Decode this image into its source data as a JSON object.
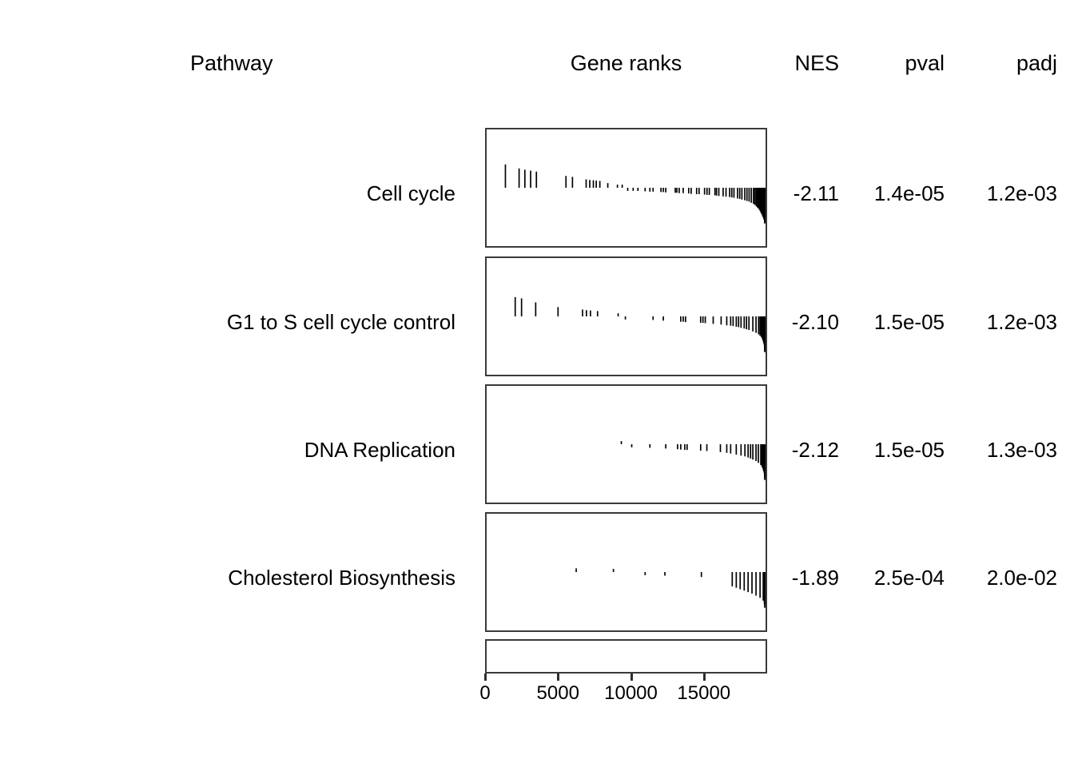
{
  "header": {
    "pathway": "Pathway",
    "gene_ranks": "Gene ranks",
    "nes": "NES",
    "pval": "pval",
    "padj": "padj"
  },
  "chart_data": {
    "type": "table",
    "title": "",
    "description": "GSEA results table: per-pathway gene rank tick plots with NES, pval and padj columns. Ticks hang from a central baseline; positive stat ticks point up, negative point down (negative enrichment, dense cluster at high ranks).",
    "columns": [
      "Pathway",
      "Gene ranks",
      "NES",
      "pval",
      "padj"
    ],
    "x_axis": {
      "label": "",
      "ticks": [
        0,
        5000,
        10000,
        15000
      ],
      "range": [
        0,
        19340
      ],
      "grid": false
    },
    "tick_color": "#000000",
    "pathways": [
      {
        "name": "Cell cycle",
        "nes": -2.11,
        "nes_label": "-2.11",
        "pval_label": "1.4e-05",
        "padj_label": "1.2e-03",
        "gene_rank_ticks": [
          [
            1300,
            0.75
          ],
          [
            2250,
            0.62
          ],
          [
            2650,
            0.58
          ],
          [
            3050,
            0.55
          ],
          [
            3450,
            0.52
          ],
          [
            5500,
            0.38
          ],
          [
            5950,
            0.35
          ],
          [
            6900,
            0.27
          ],
          [
            7150,
            0.25
          ],
          [
            7400,
            0.24
          ],
          [
            7600,
            0.23
          ],
          [
            7850,
            0.22
          ],
          [
            8400,
            0.15
          ],
          [
            9070,
            0.1
          ],
          [
            9400,
            0.08
          ],
          [
            9780,
            -0.07
          ],
          [
            10160,
            -0.08
          ],
          [
            10490,
            -0.09
          ],
          [
            10990,
            -0.1
          ],
          [
            11320,
            -0.11
          ],
          [
            11540,
            -0.11
          ],
          [
            12090,
            -0.12
          ],
          [
            12250,
            -0.12
          ],
          [
            12420,
            -0.13
          ],
          [
            13080,
            -0.14
          ],
          [
            13190,
            -0.14
          ],
          [
            13350,
            -0.15
          ],
          [
            13630,
            -0.15
          ],
          [
            14010,
            -0.16
          ],
          [
            14180,
            -0.17
          ],
          [
            14560,
            -0.18
          ],
          [
            14730,
            -0.18
          ],
          [
            15110,
            -0.19
          ],
          [
            15280,
            -0.2
          ],
          [
            15440,
            -0.2
          ],
          [
            15830,
            -0.21
          ],
          [
            15940,
            -0.22
          ],
          [
            16100,
            -0.23
          ],
          [
            16400,
            -0.24
          ],
          [
            16600,
            -0.25
          ],
          [
            16850,
            -0.26
          ],
          [
            17000,
            -0.27
          ],
          [
            17150,
            -0.28
          ],
          [
            17400,
            -0.3
          ],
          [
            17550,
            -0.31
          ],
          [
            17700,
            -0.33
          ],
          [
            17900,
            -0.35
          ],
          [
            18050,
            -0.37
          ],
          [
            18200,
            -0.39
          ],
          [
            18350,
            -0.42
          ],
          [
            18500,
            -0.45
          ],
          [
            18600,
            -0.48
          ],
          [
            18700,
            -0.52
          ],
          [
            18780,
            -0.55
          ],
          [
            18850,
            -0.58
          ],
          [
            18920,
            -0.62
          ],
          [
            18980,
            -0.66
          ],
          [
            19030,
            -0.7
          ],
          [
            19080,
            -0.74
          ],
          [
            19130,
            -0.78
          ],
          [
            19170,
            -0.82
          ],
          [
            19210,
            -0.86
          ],
          [
            19240,
            -0.89
          ],
          [
            19270,
            -0.92
          ],
          [
            19290,
            -0.94
          ],
          [
            19310,
            -0.96
          ],
          [
            19325,
            -0.98
          ],
          [
            19340,
            -1.0
          ]
        ]
      },
      {
        "name": "G1 to S cell cycle control",
        "nes": -2.1,
        "nes_label": "-2.10",
        "pval_label": "1.5e-05",
        "padj_label": "1.2e-03",
        "gene_rank_ticks": [
          [
            1980,
            0.62
          ],
          [
            2420,
            0.58
          ],
          [
            3400,
            0.45
          ],
          [
            4950,
            0.3
          ],
          [
            6650,
            0.22
          ],
          [
            6920,
            0.2
          ],
          [
            7200,
            0.19
          ],
          [
            7690,
            0.17
          ],
          [
            9120,
            0.07
          ],
          [
            9620,
            -0.07
          ],
          [
            11540,
            -0.1
          ],
          [
            12250,
            -0.12
          ],
          [
            13460,
            -0.15
          ],
          [
            13630,
            -0.15
          ],
          [
            13790,
            -0.16
          ],
          [
            14840,
            -0.18
          ],
          [
            15000,
            -0.18
          ],
          [
            15160,
            -0.19
          ],
          [
            15710,
            -0.21
          ],
          [
            16260,
            -0.23
          ],
          [
            16650,
            -0.25
          ],
          [
            16920,
            -0.26
          ],
          [
            17090,
            -0.27
          ],
          [
            17310,
            -0.29
          ],
          [
            17470,
            -0.3
          ],
          [
            17640,
            -0.32
          ],
          [
            17860,
            -0.34
          ],
          [
            18020,
            -0.36
          ],
          [
            18190,
            -0.38
          ],
          [
            18460,
            -0.42
          ],
          [
            18680,
            -0.46
          ],
          [
            18860,
            -0.5
          ],
          [
            18960,
            -0.54
          ],
          [
            19050,
            -0.58
          ],
          [
            19120,
            -0.63
          ],
          [
            19170,
            -0.68
          ],
          [
            19210,
            -0.73
          ],
          [
            19240,
            -0.78
          ],
          [
            19270,
            -0.84
          ],
          [
            19290,
            -0.88
          ],
          [
            19310,
            -0.93
          ],
          [
            19325,
            -0.97
          ],
          [
            19340,
            -1.0
          ]
        ]
      },
      {
        "name": "DNA Replication",
        "nes": -2.12,
        "nes_label": "-2.12",
        "pval_label": "1.5e-05",
        "padj_label": "1.3e-03",
        "gene_rank_ticks": [
          [
            9340,
            0.06
          ],
          [
            10060,
            -0.06
          ],
          [
            11320,
            -0.1
          ],
          [
            12420,
            -0.12
          ],
          [
            13240,
            -0.14
          ],
          [
            13460,
            -0.15
          ],
          [
            13740,
            -0.16
          ],
          [
            13900,
            -0.16
          ],
          [
            14840,
            -0.18
          ],
          [
            15270,
            -0.19
          ],
          [
            16210,
            -0.22
          ],
          [
            16650,
            -0.24
          ],
          [
            16920,
            -0.26
          ],
          [
            17310,
            -0.29
          ],
          [
            17640,
            -0.32
          ],
          [
            17910,
            -0.34
          ],
          [
            18130,
            -0.37
          ],
          [
            18300,
            -0.4
          ],
          [
            18460,
            -0.43
          ],
          [
            18680,
            -0.47
          ],
          [
            18840,
            -0.52
          ],
          [
            19010,
            -0.58
          ],
          [
            19090,
            -0.63
          ],
          [
            19150,
            -0.68
          ],
          [
            19200,
            -0.74
          ],
          [
            19240,
            -0.79
          ],
          [
            19270,
            -0.85
          ],
          [
            19300,
            -0.91
          ],
          [
            19320,
            -0.96
          ],
          [
            19340,
            -1.0
          ]
        ]
      },
      {
        "name": "Cholesterol Biosynthesis",
        "nes": -1.89,
        "nes_label": "-1.89",
        "pval_label": "2.5e-04",
        "padj_label": "2.0e-02",
        "gene_rank_ticks": [
          [
            6210,
            0.12
          ],
          [
            8790,
            0.05
          ],
          [
            10990,
            -0.08
          ],
          [
            12360,
            -0.1
          ],
          [
            14890,
            -0.14
          ],
          [
            17030,
            -0.4
          ],
          [
            17310,
            -0.44
          ],
          [
            17580,
            -0.48
          ],
          [
            17860,
            -0.52
          ],
          [
            18130,
            -0.56
          ],
          [
            18400,
            -0.6
          ],
          [
            18680,
            -0.66
          ],
          [
            18960,
            -0.72
          ],
          [
            19180,
            -0.8
          ],
          [
            19260,
            -0.88
          ],
          [
            19300,
            -0.94
          ],
          [
            19340,
            -1.0
          ]
        ]
      }
    ]
  }
}
